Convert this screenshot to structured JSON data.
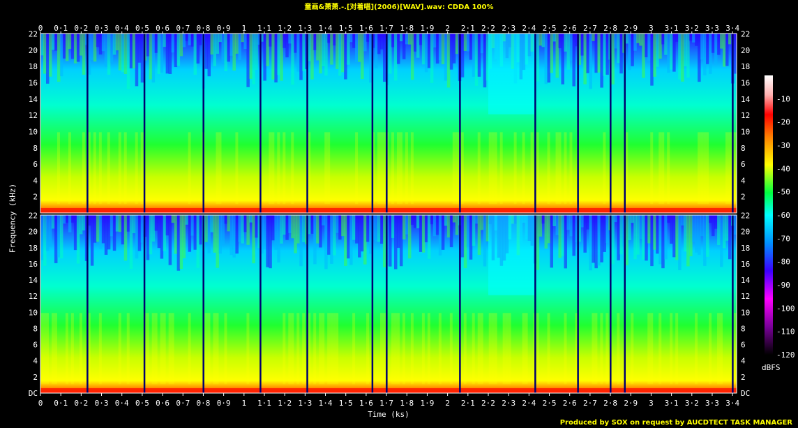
{
  "header": {
    "title": "童画&萧萧.-.[对着唱](2006)[WAV].wav: CDDA 100%",
    "credit": "Produced by SOX on request by AUCDTECT TASK MANAGER"
  },
  "chart_data": {
    "type": "heatmap",
    "title": "童画&萧萧.-.[对着唱](2006)[WAV].wav: CDDA 100%",
    "xlabel": "Time (ks)",
    "ylabel": "Frequency (kHz)",
    "colorbar_label": "dBFS",
    "channels": 2,
    "xlim": [
      0,
      3.42
    ],
    "ylim_khz": [
      0,
      22.05
    ],
    "colorbar_range": [
      -120,
      0
    ],
    "x_ticks": [
      "0",
      "0·1",
      "0·2",
      "0·3",
      "0·4",
      "0·5",
      "0·6",
      "0·7",
      "0·8",
      "0·9",
      "1",
      "1·1",
      "1·2",
      "1·3",
      "1·4",
      "1·5",
      "1·6",
      "1·7",
      "1·8",
      "1·9",
      "2",
      "2·1",
      "2·2",
      "2·3",
      "2·4",
      "2·5",
      "2·6",
      "2·7",
      "2·8",
      "2·9",
      "3",
      "3·1",
      "3·2",
      "3·3",
      "3·4"
    ],
    "y_ticks": [
      "DC",
      "2",
      "4",
      "6",
      "8",
      "10",
      "12",
      "14",
      "16",
      "18",
      "20",
      "22"
    ],
    "colorbar_ticks": [
      "-10",
      "-20",
      "-30",
      "-40",
      "-50",
      "-60",
      "-70",
      "-80",
      "-90",
      "-100",
      "-110",
      "-120"
    ],
    "colorbar_colors": [
      "#000000",
      "#7a0099",
      "#3b00ff",
      "#0090ff",
      "#00ffff",
      "#00ff40",
      "#ffff00",
      "#ff8000",
      "#ff0000",
      "#ffb0b0",
      "#ffffff"
    ],
    "track_breaks_ks": [
      0.23,
      0.51,
      0.8,
      1.08,
      1.31,
      1.63,
      1.7,
      2.06,
      2.43,
      2.64,
      2.8,
      2.87,
      3.4
    ],
    "grid": false
  }
}
